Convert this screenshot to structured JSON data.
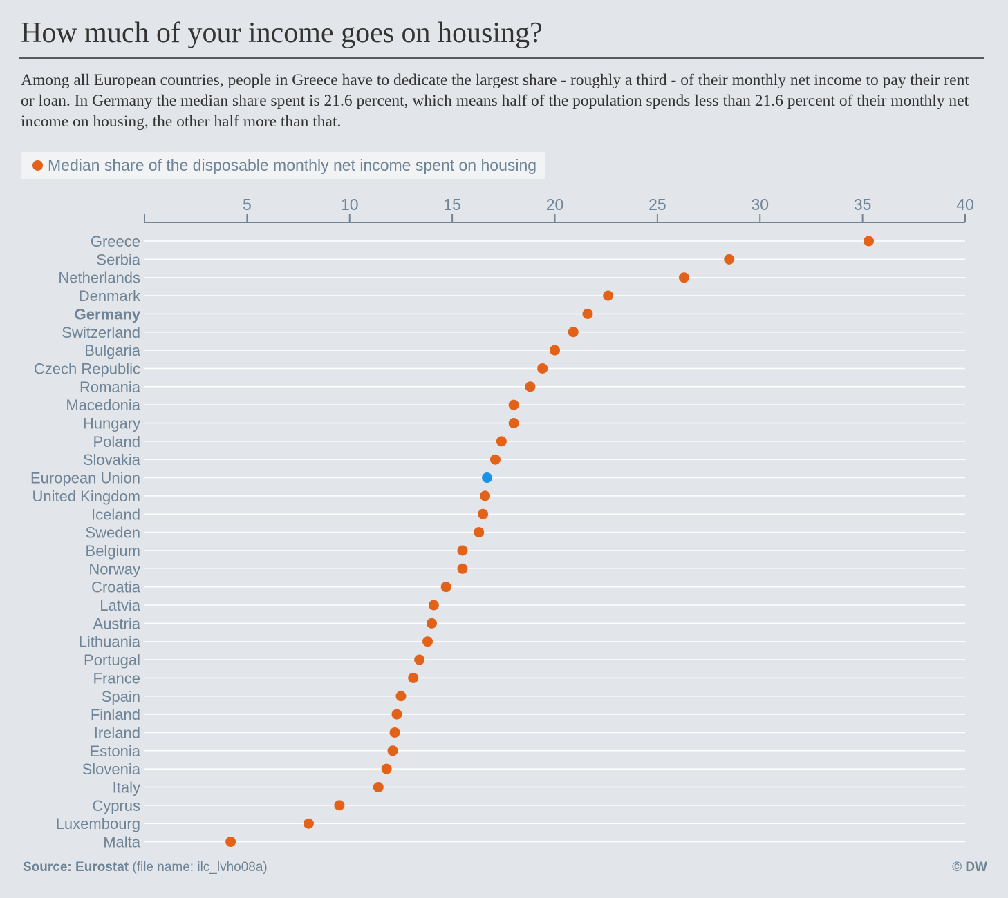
{
  "header": {
    "title": "How much of your income goes on housing?",
    "subtitle": "Among all European countries, people in Greece have to dedicate the largest share - roughly a third - of their monthly net income to pay their rent or loan. In Germany the median share spent is 21.6 percent, which means half of the population spends less than 21.6 percent of their monthly net income on housing, the other half more than that."
  },
  "legend": {
    "label": "Median share of the disposable monthly net income spent on housing"
  },
  "footer": {
    "source_label": "Source: Eurostat",
    "source_detail": " (file name: ilc_lvho08a)",
    "copyright": "© DW"
  },
  "colors": {
    "point": "#e2621a",
    "highlight_point": "#1a94e6",
    "axis": "#6f8496",
    "gridline": "#ffffff",
    "background": "#e2e6ea"
  },
  "chart_data": {
    "type": "scatter",
    "xlim": [
      0,
      40
    ],
    "xticks": [
      5,
      10,
      15,
      20,
      25,
      30,
      35,
      40
    ],
    "axis_position": "top",
    "grid": true,
    "highlight_bold_category": "Germany",
    "highlight_color_category": "European Union",
    "categories": [
      "Greece",
      "Serbia",
      "Netherlands",
      "Denmark",
      "Germany",
      "Switzerland",
      "Bulgaria",
      "Czech Republic",
      "Romania",
      "Macedonia",
      "Hungary",
      "Poland",
      "Slovakia",
      "European Union",
      "United Kingdom",
      "Iceland",
      "Sweden",
      "Belgium",
      "Norway",
      "Croatia",
      "Latvia",
      "Austria",
      "Lithuania",
      "Portugal",
      "France",
      "Spain",
      "Finland",
      "Ireland",
      "Estonia",
      "Slovenia",
      "Italy",
      "Cyprus",
      "Luxembourg",
      "Malta"
    ],
    "values": [
      35.3,
      28.5,
      26.3,
      22.6,
      21.6,
      20.9,
      20.0,
      19.4,
      18.8,
      18.0,
      18.0,
      17.4,
      17.1,
      16.7,
      16.6,
      16.5,
      16.3,
      15.5,
      15.5,
      14.7,
      14.1,
      14.0,
      13.8,
      13.4,
      13.1,
      12.5,
      12.3,
      12.2,
      12.1,
      11.8,
      11.4,
      9.5,
      8.0,
      4.2
    ]
  }
}
